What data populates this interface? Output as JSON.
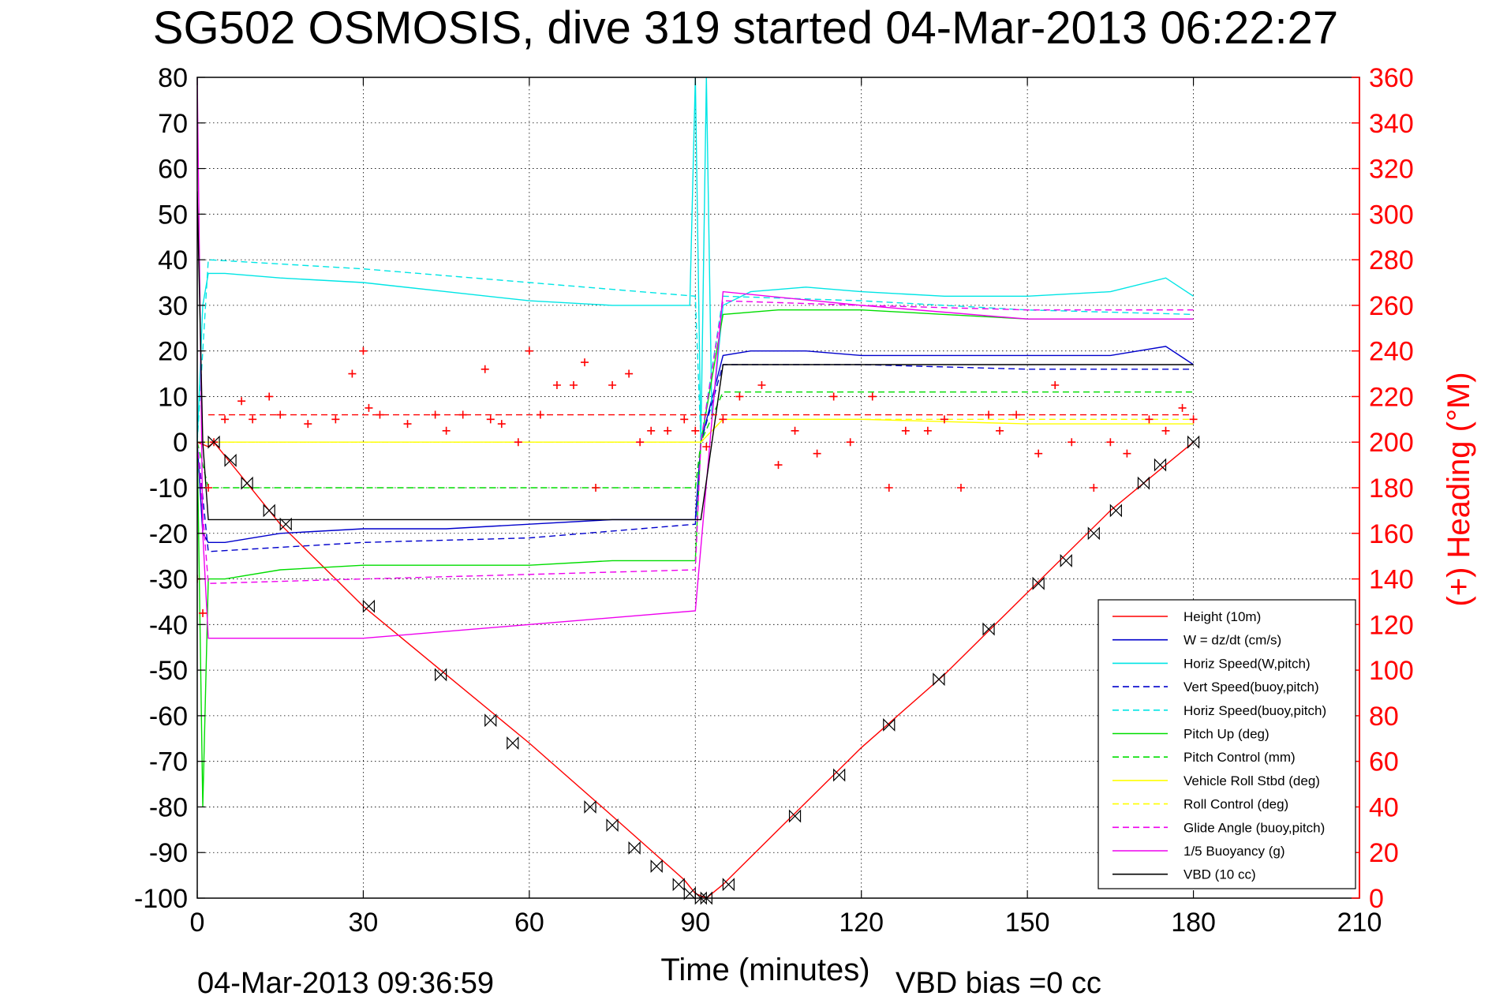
{
  "chart_data": {
    "type": "line",
    "title": "SG502 OSMOSIS, dive 319 started 04-Mar-2013 06:22:27",
    "xlabel": "Time (minutes)",
    "ylabel_right": "(+) Heading (°M)",
    "footer_left": "04-Mar-2013 09:36:59",
    "footer_right": "VBD bias =0 cc",
    "xlim": [
      0,
      210
    ],
    "ylim": [
      -100,
      80
    ],
    "ylim_right": [
      0,
      360
    ],
    "x_ticks": [
      "0",
      "30",
      "60",
      "90",
      "120",
      "150",
      "180",
      "210"
    ],
    "y_ticks": [
      "80",
      "70",
      "60",
      "50",
      "40",
      "30",
      "20",
      "10",
      "0",
      "-10",
      "-20",
      "-30",
      "-40",
      "-50",
      "-60",
      "-70",
      "-80",
      "-90",
      "-100"
    ],
    "y_ticks_right": [
      "360",
      "340",
      "320",
      "300",
      "280",
      "260",
      "240",
      "220",
      "200",
      "180",
      "160",
      "140",
      "120",
      "100",
      "80",
      "60",
      "40",
      "20",
      "0"
    ],
    "grid": true,
    "legend_position": "lower-right",
    "series": [
      {
        "name": "Height (10m)",
        "color": "#ff0000",
        "style": "solid",
        "x": [
          0,
          1,
          2,
          3,
          15,
          30,
          45,
          60,
          75,
          88,
          90,
          92,
          95,
          105,
          120,
          135,
          150,
          165,
          175,
          180
        ],
        "y": [
          0,
          -0.5,
          -1,
          0,
          -18,
          -36,
          -51,
          -66,
          -82,
          -96,
          -99,
          -100,
          -97,
          -85,
          -67,
          -51,
          -33,
          -15,
          -5,
          0
        ]
      },
      {
        "name": "W = dz/dt (cm/s)",
        "color": "#0000cc",
        "style": "solid",
        "x": [
          0,
          1,
          2,
          5,
          15,
          30,
          45,
          60,
          75,
          85,
          90,
          91,
          95,
          100,
          110,
          120,
          135,
          150,
          165,
          175,
          180
        ],
        "y": [
          0,
          -20,
          -22,
          -22,
          -20,
          -19,
          -19,
          -18,
          -17,
          -17,
          -17,
          0,
          19,
          20,
          20,
          19,
          19,
          19,
          19,
          21,
          17
        ]
      },
      {
        "name": "Horiz Speed(W,pitch)",
        "color": "#00e5e5",
        "style": "solid",
        "x": [
          0,
          1,
          2,
          5,
          15,
          30,
          45,
          60,
          75,
          85,
          89,
          90,
          91,
          92,
          93,
          95,
          100,
          110,
          120,
          135,
          150,
          165,
          175,
          180
        ],
        "y": [
          0,
          30,
          37,
          37,
          36,
          35,
          33,
          31,
          30,
          30,
          30,
          80,
          0,
          80,
          5,
          30,
          33,
          34,
          33,
          32,
          32,
          33,
          36,
          32
        ]
      },
      {
        "name": "Vert Speed(buoy,pitch)",
        "color": "#0000cc",
        "style": "dashed",
        "x": [
          0,
          2,
          30,
          60,
          90,
          91,
          95,
          120,
          150,
          180
        ],
        "y": [
          0,
          -24,
          -22,
          -21,
          -18,
          0,
          17,
          17,
          16,
          16
        ]
      },
      {
        "name": "Horiz Speed(buoy,pitch)",
        "color": "#00e5e5",
        "style": "dashed",
        "x": [
          0,
          2,
          30,
          60,
          90,
          91,
          95,
          120,
          150,
          180
        ],
        "y": [
          0,
          40,
          38,
          35,
          32,
          0,
          32,
          31,
          29,
          28
        ]
      },
      {
        "name": "Pitch Up (deg)",
        "color": "#00dd00",
        "style": "solid",
        "x": [
          0,
          1,
          2,
          5,
          15,
          30,
          45,
          60,
          75,
          88,
          90,
          91,
          95,
          105,
          120,
          135,
          150,
          165,
          180
        ],
        "y": [
          0,
          -80,
          -30,
          -30,
          -28,
          -27,
          -27,
          -27,
          -26,
          -26,
          -26,
          0,
          28,
          29,
          29,
          28,
          27,
          27,
          27
        ]
      },
      {
        "name": "Pitch Control (mm)",
        "color": "#00dd00",
        "style": "dashed",
        "x": [
          0,
          2,
          90,
          91,
          95,
          180
        ],
        "y": [
          0,
          -10,
          -10,
          0,
          11,
          11
        ]
      },
      {
        "name": "Vehicle Roll Stbd (deg)",
        "color": "#ffff00",
        "style": "solid",
        "x": [
          0,
          2,
          30,
          60,
          90,
          91,
          95,
          120,
          150,
          180
        ],
        "y": [
          0,
          0,
          0,
          0,
          0,
          0,
          5,
          5,
          4,
          4
        ]
      },
      {
        "name": "Roll Control (deg)",
        "color": "#ffff00",
        "style": "dashed",
        "x": [
          0,
          2,
          30,
          60,
          90,
          91,
          95,
          120,
          150,
          180
        ],
        "y": [
          0,
          0,
          0,
          0,
          0,
          0,
          5,
          5,
          5,
          5
        ]
      },
      {
        "name": "Glide Angle (buoy,pitch)",
        "color": "#ee00ee",
        "style": "dashed",
        "x": [
          0,
          2,
          30,
          60,
          90,
          91,
          95,
          120,
          150,
          180
        ],
        "y": [
          0,
          -31,
          -30,
          -29,
          -28,
          0,
          31,
          30,
          29,
          29
        ]
      },
      {
        "name": "1/5 Buoyancy (g)",
        "color": "#ee00ee",
        "style": "solid",
        "x": [
          0,
          1,
          2,
          5,
          30,
          60,
          90,
          95,
          120,
          150,
          180
        ],
        "y": [
          80,
          -20,
          -43,
          -43,
          -43,
          -40,
          -37,
          33,
          30,
          27,
          27
        ]
      },
      {
        "name": "VBD (10 cc)",
        "color": "#000000",
        "style": "solid",
        "x": [
          0,
          1,
          2,
          3,
          90,
          91,
          95,
          180
        ],
        "y": [
          55,
          0,
          -17,
          -17,
          -17,
          -17,
          17,
          17
        ]
      }
    ],
    "heading_series": {
      "name": "Heading",
      "color": "#ff0000",
      "marker": "+",
      "x": [
        0,
        1,
        2,
        3,
        5,
        8,
        10,
        13,
        15,
        20,
        25,
        28,
        30,
        31,
        33,
        38,
        43,
        45,
        48,
        52,
        53,
        55,
        58,
        60,
        62,
        65,
        68,
        70,
        72,
        75,
        78,
        80,
        82,
        85,
        88,
        90,
        92,
        95,
        98,
        102,
        105,
        108,
        112,
        115,
        118,
        122,
        125,
        128,
        132,
        135,
        138,
        143,
        145,
        148,
        152,
        155,
        158,
        162,
        165,
        168,
        172,
        175,
        178,
        180
      ],
      "y": [
        140,
        125,
        180,
        200,
        210,
        218,
        210,
        220,
        212,
        208,
        210,
        230,
        240,
        215,
        212,
        208,
        212,
        205,
        212,
        232,
        210,
        208,
        200,
        240,
        212,
        225,
        225,
        235,
        180,
        225,
        230,
        200,
        205,
        205,
        210,
        205,
        198,
        210,
        220,
        225,
        190,
        205,
        195,
        220,
        200,
        220,
        180,
        205,
        205,
        210,
        180,
        212,
        205,
        212,
        195,
        225,
        200,
        180,
        200,
        195,
        210,
        205,
        215,
        210
      ]
    },
    "heading_target": 212,
    "depth_markers": {
      "x": [
        3,
        6,
        9,
        13,
        16,
        31,
        44,
        53,
        57,
        71,
        75,
        79,
        83,
        87,
        89,
        91,
        92,
        96,
        108,
        116,
        125,
        134,
        143,
        152,
        157,
        162,
        166,
        171,
        174,
        180
      ],
      "y": [
        0,
        -4,
        -9,
        -15,
        -18,
        -36,
        -51,
        -61,
        -66,
        -80,
        -84,
        -89,
        -93,
        -97,
        -99,
        -100,
        -100,
        -97,
        -82,
        -73,
        -62,
        -52,
        -41,
        -31,
        -26,
        -20,
        -15,
        -9,
        -5,
        0
      ]
    }
  }
}
